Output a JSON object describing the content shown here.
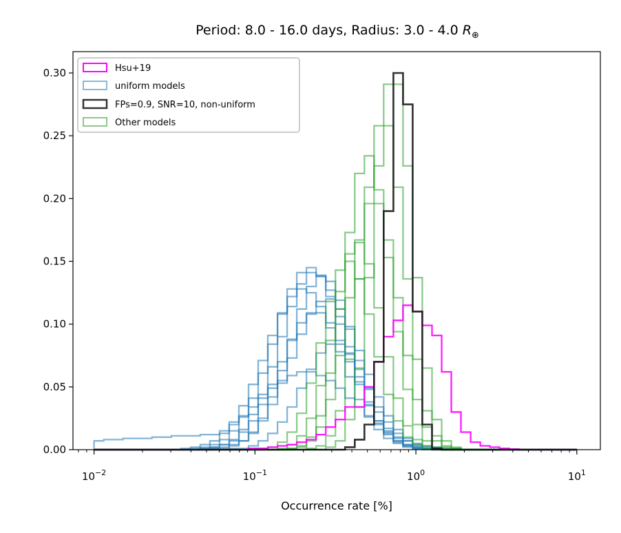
{
  "chart_data": {
    "type": "histogram-step",
    "title": "Period: 8.0 - 16.0 days, Radius: 3.0 - 4.0",
    "title_symbol": "R",
    "title_subscript": "⊕",
    "xlabel": "Occurrence rate [%]",
    "ylabel": "",
    "xscale": "log",
    "xlim": [
      0.0074,
      14.0
    ],
    "ylim": [
      0.0,
      0.317
    ],
    "x_ticks": [
      {
        "value": 0.01,
        "base": "10",
        "exp": "−2"
      },
      {
        "value": 0.1,
        "base": "10",
        "exp": "−1"
      },
      {
        "value": 1,
        "base": "10",
        "exp": "0"
      },
      {
        "value": 10,
        "base": "10",
        "exp": "1"
      }
    ],
    "y_ticks": [
      "0.00",
      "0.05",
      "0.10",
      "0.15",
      "0.20",
      "0.25",
      "0.30"
    ],
    "y_tick_values": [
      0,
      0.05,
      0.1,
      0.15,
      0.2,
      0.25,
      0.3
    ],
    "bins": {
      "log10_start": -2,
      "log10_end": 1,
      "count": 50
    },
    "legend": {
      "position": "upper-left",
      "entries": [
        {
          "label": "Hsu+19",
          "color": "#ff00ff"
        },
        {
          "label": "uniform models",
          "color": "#8bb8d6"
        },
        {
          "label": "FPs=0.9, SNR=10, non-uniform",
          "color": "#333333"
        },
        {
          "label": "Other models",
          "color": "#8fc58f"
        }
      ]
    },
    "series": [
      {
        "name": "uniform models",
        "group": "blue",
        "color": "#1f77b4",
        "opacity": 0.55,
        "shape": "gauss",
        "peak_log10": -0.66,
        "sigma": 0.22,
        "amp": 0.145,
        "left_tail": 0.0
      },
      {
        "name": "uniform models",
        "group": "blue",
        "color": "#1f77b4",
        "opacity": 0.55,
        "shape": "gauss",
        "peak_log10": -0.63,
        "sigma": 0.21,
        "amp": 0.142,
        "left_tail": 0.0
      },
      {
        "name": "uniform models",
        "group": "blue",
        "color": "#1f77b4",
        "opacity": 0.55,
        "shape": "gauss",
        "peak_log10": -0.58,
        "sigma": 0.2,
        "amp": 0.138,
        "left_tail": 0.0
      },
      {
        "name": "uniform models",
        "group": "blue",
        "color": "#1f77b4",
        "opacity": 0.55,
        "shape": "gauss",
        "peak_log10": -0.7,
        "sigma": 0.23,
        "amp": 0.128,
        "left_tail": 0.0
      },
      {
        "name": "uniform models",
        "group": "blue",
        "color": "#1f77b4",
        "opacity": 0.55,
        "shape": "gauss",
        "peak_log10": -0.55,
        "sigma": 0.22,
        "amp": 0.12,
        "left_tail": 0.0
      },
      {
        "name": "uniform models",
        "group": "blue",
        "color": "#1f77b4",
        "opacity": 0.55,
        "shape": "gauss",
        "peak_log10": -0.62,
        "sigma": 0.22,
        "amp": 0.11,
        "left_tail": 0.0
      },
      {
        "name": "uniform models",
        "group": "blue",
        "color": "#1f77b4",
        "opacity": 0.55,
        "shape": "gauss",
        "peak_log10": -0.68,
        "sigma": 0.3,
        "amp": 0.062,
        "left_tail": 0.012
      },
      {
        "name": "uniform models",
        "group": "blue",
        "color": "#1f77b4",
        "opacity": 0.55,
        "shape": "gauss",
        "peak_log10": -0.5,
        "sigma": 0.2,
        "amp": 0.085,
        "left_tail": 0.0
      },
      {
        "name": "Other models",
        "group": "green",
        "color": "#2ca02c",
        "opacity": 0.55,
        "shape": "gauss",
        "peak_log10": -0.3,
        "sigma": 0.14,
        "amp": 0.235,
        "left_tail": 0.0
      },
      {
        "name": "Other models",
        "group": "green",
        "color": "#2ca02c",
        "opacity": 0.55,
        "shape": "gauss",
        "peak_log10": -0.14,
        "sigma": 0.12,
        "amp": 0.3,
        "left_tail": 0.0
      },
      {
        "name": "Other models",
        "group": "green",
        "color": "#2ca02c",
        "opacity": 0.55,
        "shape": "gauss",
        "peak_log10": -0.2,
        "sigma": 0.13,
        "amp": 0.265,
        "left_tail": 0.0
      },
      {
        "name": "Other models",
        "group": "green",
        "color": "#2ca02c",
        "opacity": 0.55,
        "shape": "gauss",
        "peak_log10": -0.36,
        "sigma": 0.15,
        "amp": 0.165,
        "left_tail": 0.0
      },
      {
        "name": "Other models",
        "group": "green",
        "color": "#2ca02c",
        "opacity": 0.55,
        "shape": "gauss",
        "peak_log10": -0.26,
        "sigma": 0.15,
        "amp": 0.2,
        "left_tail": 0.0
      },
      {
        "name": "Other models",
        "group": "green",
        "color": "#2ca02c",
        "opacity": 0.55,
        "shape": "gauss",
        "peak_log10": -0.42,
        "sigma": 0.16,
        "amp": 0.15,
        "left_tail": 0.0
      },
      {
        "name": "Hsu+19",
        "group": "hsu",
        "color": "#ff00ff",
        "opacity": 0.9,
        "shape": "explicit",
        "start_bin": 16,
        "values": [
          0.001,
          0.001,
          0.002,
          0.003,
          0.004,
          0.006,
          0.008,
          0.012,
          0.018,
          0.024,
          0.034,
          0.034,
          0.05,
          0.07,
          0.09,
          0.103,
          0.115,
          0.11,
          0.099,
          0.091,
          0.062,
          0.03,
          0.014,
          0.006,
          0.003,
          0.002,
          0.001,
          0.0005
        ]
      },
      {
        "name": "FPs=0.9, SNR=10, non-uniform",
        "group": "black",
        "color": "#1a1a1a",
        "opacity": 0.9,
        "shape": "explicit",
        "start_bin": 26,
        "values": [
          0.002,
          0.008,
          0.02,
          0.07,
          0.19,
          0.3,
          0.275,
          0.11,
          0.02,
          0.001
        ]
      }
    ]
  }
}
